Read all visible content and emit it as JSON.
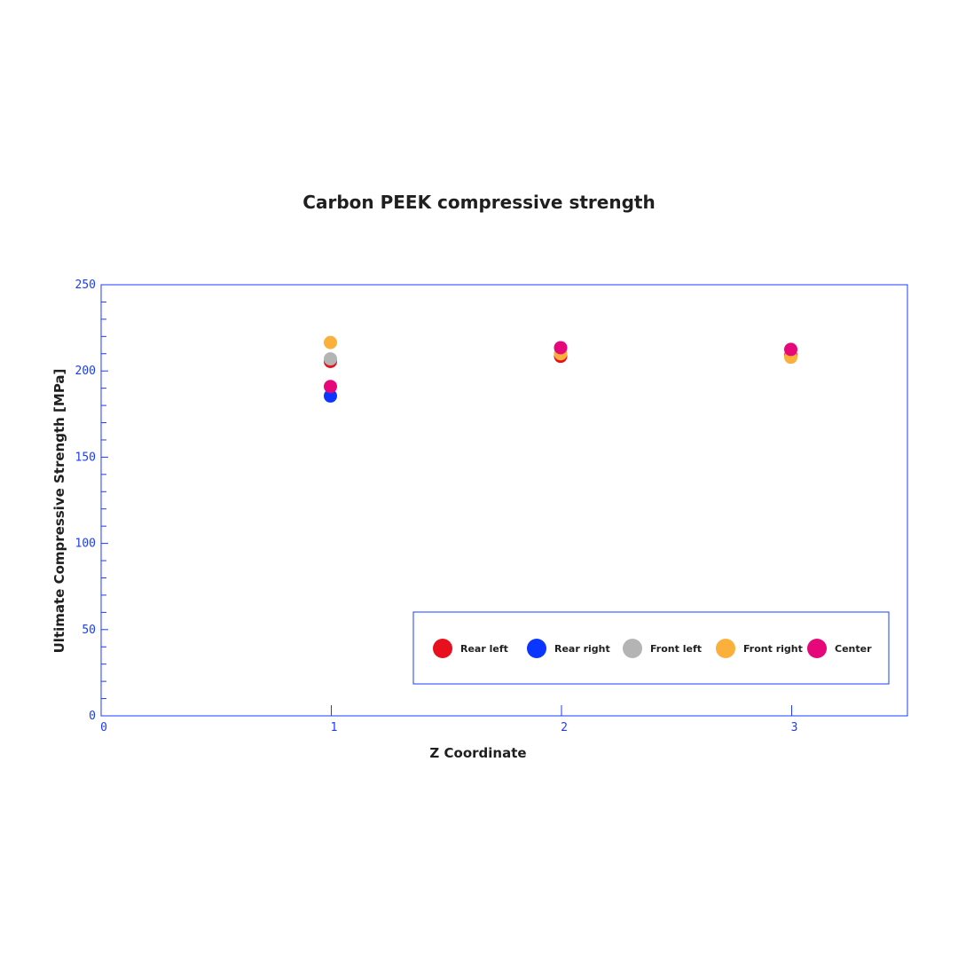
{
  "chart_data": {
    "type": "scatter",
    "title": "Carbon PEEK compressive strength",
    "xlabel": "Z Coordinate",
    "ylabel": "Ultimate Compressive Strength [MPa]",
    "xlim": [
      0,
      3.5
    ],
    "ylim": [
      0,
      250
    ],
    "xticks": [
      "0",
      "1",
      "2",
      "3"
    ],
    "yticks": [
      "0",
      "50",
      "100",
      "150",
      "200",
      "250"
    ],
    "grid": false,
    "legend_position": "bottom-right",
    "axis_color": "#1a3cff",
    "series": [
      {
        "name": "Rear left",
        "color": "#e8101c",
        "x": [
          1,
          2,
          3
        ],
        "y": [
          205.5,
          208.5,
          209
        ]
      },
      {
        "name": "Rear right",
        "color": "#0b36ff",
        "x": [
          1
        ],
        "y": [
          185.5
        ]
      },
      {
        "name": "Front left",
        "color": "#b4b4b4",
        "x": [
          1
        ],
        "y": [
          207
        ]
      },
      {
        "name": "Front right",
        "color": "#fbb03b",
        "x": [
          1,
          2,
          3
        ],
        "y": [
          216.5,
          210,
          208
        ]
      },
      {
        "name": "Center",
        "color": "#e6077b",
        "x": [
          1,
          2,
          3
        ],
        "y": [
          191,
          213.5,
          212.5
        ]
      }
    ]
  }
}
